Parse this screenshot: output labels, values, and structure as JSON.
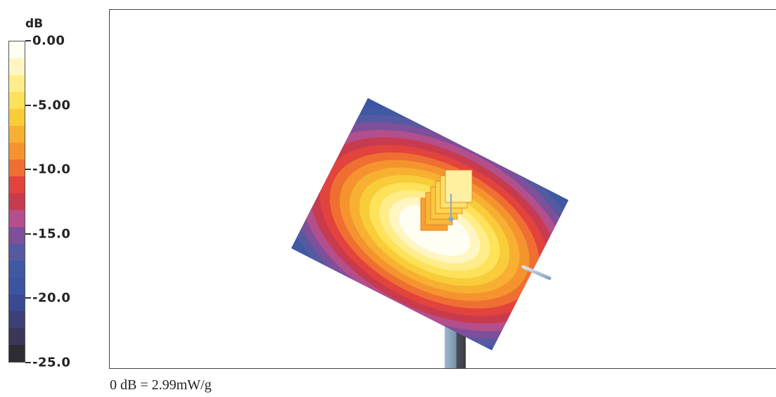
{
  "chart_data": {
    "type": "heatmap",
    "colorbar": {
      "unit": "dB",
      "ticks": [
        "0.00",
        "-5.00",
        "-10.0",
        "-15.0",
        "-20.0",
        "-25.0"
      ],
      "range": [
        -25.0,
        0.0
      ],
      "levels": [
        "#fffef2",
        "#fff6c4",
        "#ffed8a",
        "#fde25a",
        "#f9cc3a",
        "#f8b033",
        "#f5942e",
        "#ef6f33",
        "#e2433c",
        "#c83b4e",
        "#b34f8c",
        "#7e4f9a",
        "#555aa0",
        "#3f59a3",
        "#3b55a3",
        "#3a4994",
        "#3d3f78",
        "#3b3657",
        "#2e2b33"
      ]
    },
    "caption": "0 dB = 2.99mW/g"
  }
}
